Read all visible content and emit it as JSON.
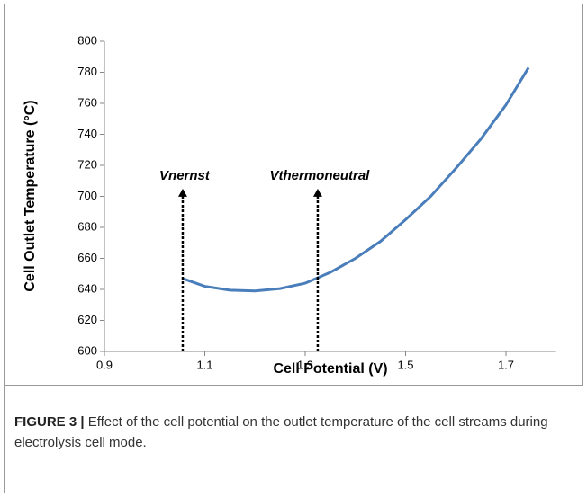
{
  "chart_data": {
    "type": "line",
    "x_label": "Cell Potential (V)",
    "y_label": "Cell Outlet Temperature (°C)",
    "series": [
      {
        "name": "Cell outlet temperature",
        "color": "#4a7ebb",
        "x": [
          1.056,
          1.1,
          1.15,
          1.2,
          1.25,
          1.3,
          1.35,
          1.4,
          1.45,
          1.5,
          1.55,
          1.6,
          1.65,
          1.7,
          1.745
        ],
        "values": [
          647,
          642,
          639.5,
          639,
          640.5,
          644,
          651,
          660,
          671,
          685,
          700,
          718,
          737,
          759,
          783
        ]
      }
    ],
    "xlim": [
      0.9,
      1.8
    ],
    "xticks": [
      0.9,
      1.1,
      1.3,
      1.5,
      1.7
    ],
    "ylim": [
      600,
      800
    ],
    "yticks": [
      600,
      620,
      640,
      660,
      680,
      700,
      720,
      740,
      760,
      780,
      800
    ],
    "annotations": [
      {
        "text": "Vnernst",
        "x": 1.056,
        "y": 705
      },
      {
        "text": "Vthermoneutral",
        "x": 1.325,
        "y": 705
      }
    ]
  },
  "caption": {
    "label": "FIGURE 3 |",
    "text": "Effect of the cell potential on the outlet temperature of the cell streams during electrolysis cell mode."
  }
}
